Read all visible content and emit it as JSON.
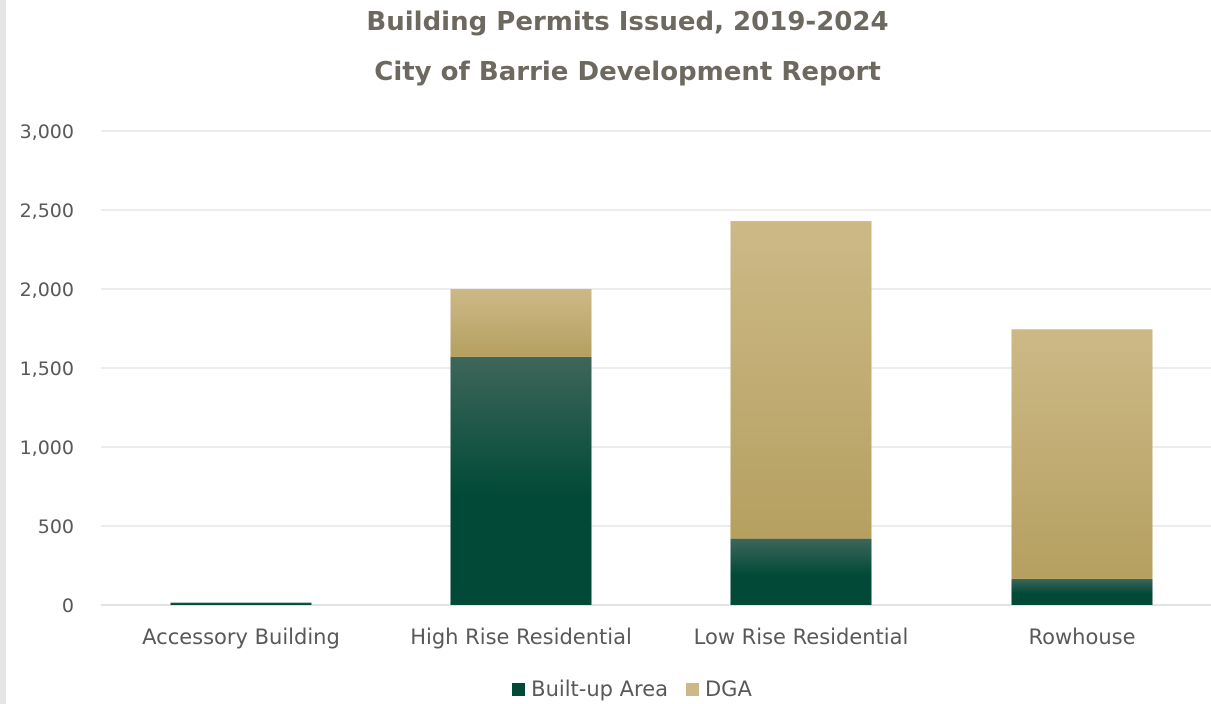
{
  "colors": {
    "built_up": "#024a37",
    "built_up_light": "#3e665a",
    "dga": "#b5a060",
    "dga_light": "#cdb987",
    "grid": "#d9d9d9",
    "tick_text": "#595959",
    "title_text": "#6e6960"
  },
  "chart_data": {
    "type": "bar",
    "stacked": true,
    "title": "Building Permits Issued, 2019-2024",
    "subtitle": "City of Barrie Development Report",
    "xlabel": "",
    "ylabel": "",
    "ylim": [
      0,
      3000
    ],
    "yticks": [
      "0",
      "500",
      "1,000",
      "1,500",
      "2,000",
      "2,500",
      "3,000"
    ],
    "ytick_values": [
      0,
      500,
      1000,
      1500,
      2000,
      2500,
      3000
    ],
    "grid": true,
    "legend_position": "bottom",
    "categories": [
      "Accessory Building",
      "High Rise Residential",
      "Low Rise Residential",
      "Rowhouse"
    ],
    "series": [
      {
        "name": "Built-up Area",
        "color": "#024a37",
        "values": [
          15,
          1570,
          420,
          165
        ]
      },
      {
        "name": "DGA",
        "color": "#b5a060",
        "values": [
          0,
          430,
          2010,
          1580
        ]
      }
    ]
  }
}
